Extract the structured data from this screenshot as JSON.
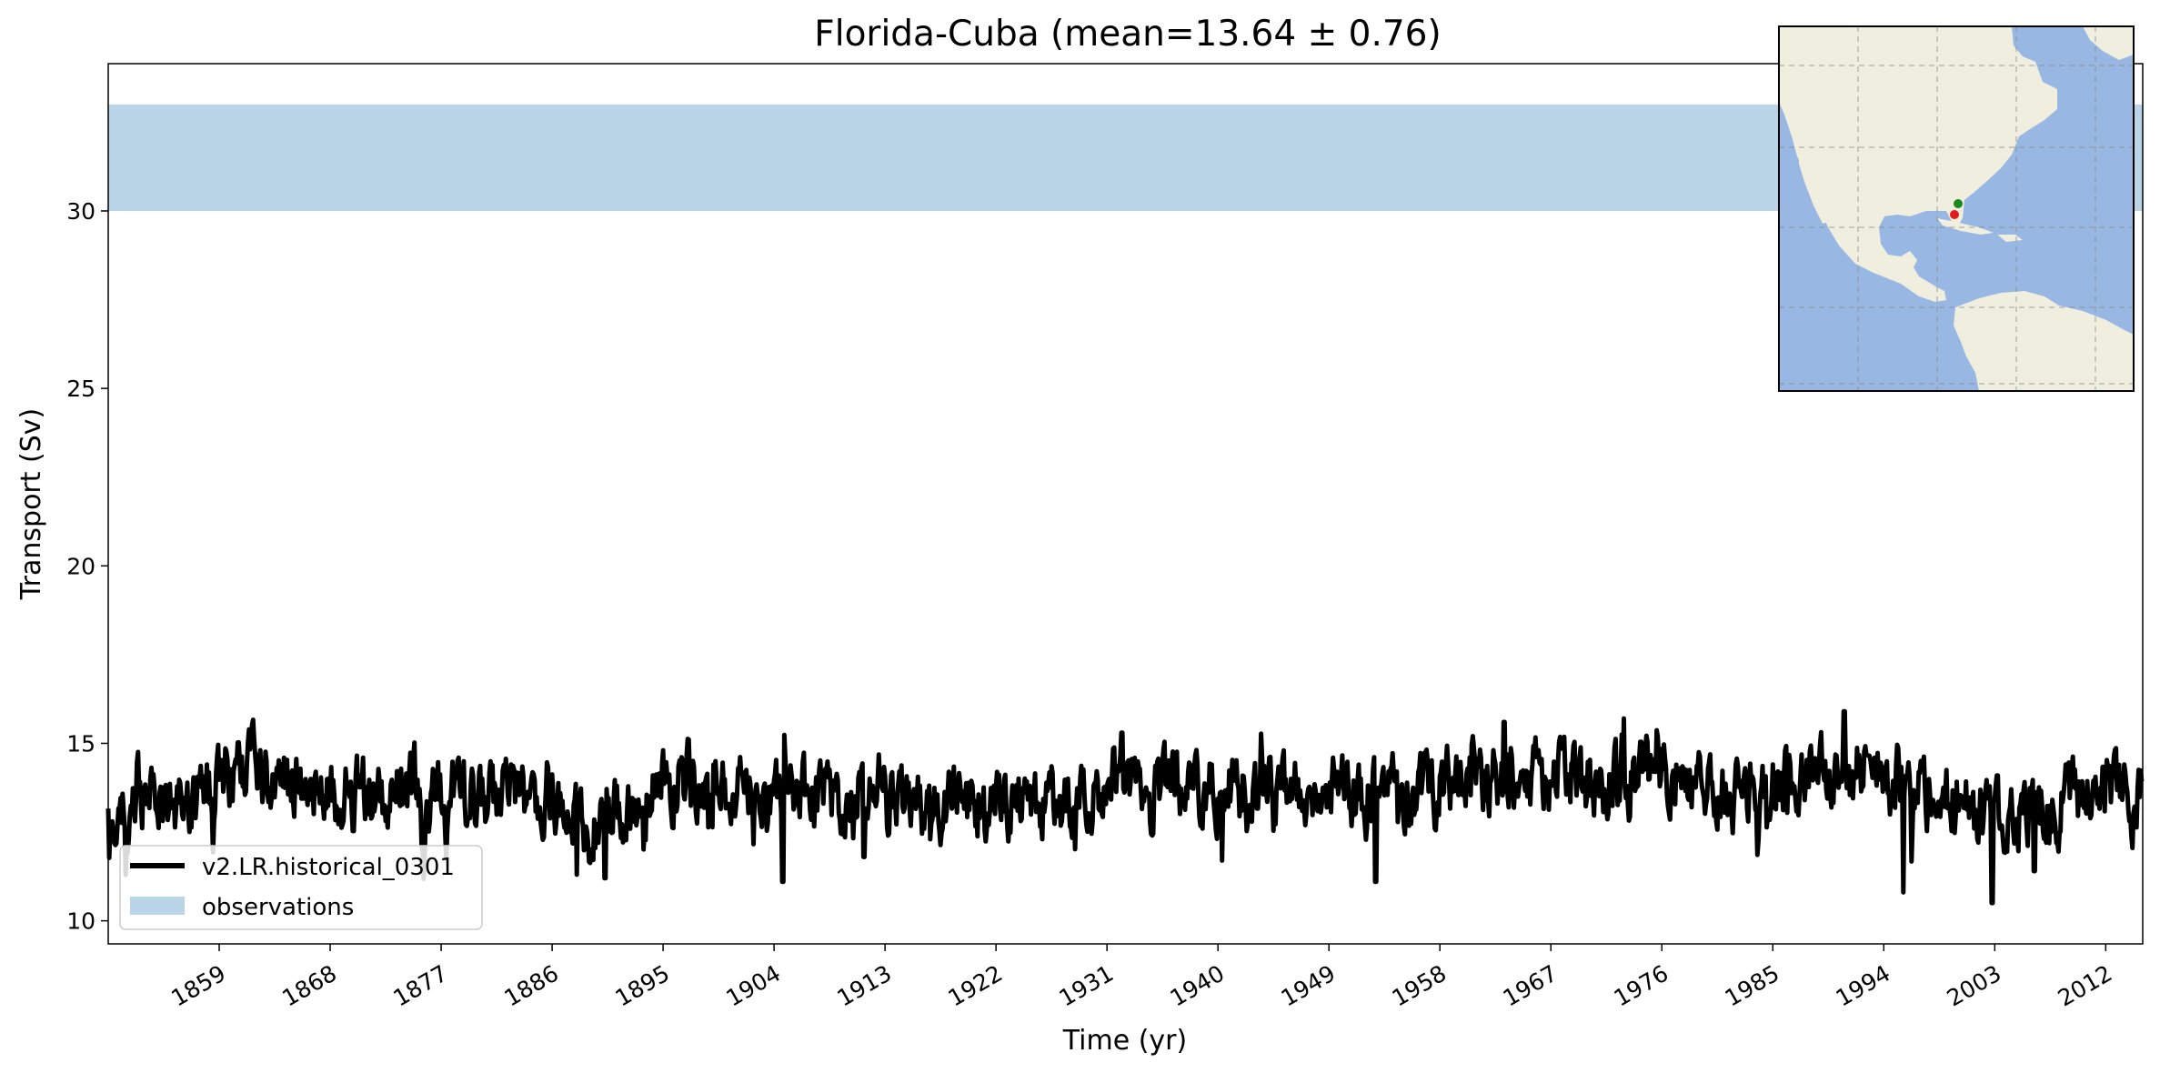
{
  "chart_data": {
    "type": "line",
    "title": "Florida-Cuba (mean=13.64 ± 0.76)",
    "xlabel": "Time (yr)",
    "ylabel": "Transport (Sv)",
    "xlim": [
      1850,
      2015
    ],
    "ylim": [
      9.35,
      34.15
    ],
    "x_ticks": [
      "1859",
      "1868",
      "1877",
      "1886",
      "1895",
      "1904",
      "1913",
      "1922",
      "1931",
      "1940",
      "1949",
      "1958",
      "1967",
      "1976",
      "1985",
      "1994",
      "2003",
      "2012"
    ],
    "y_ticks": [
      "10",
      "15",
      "20",
      "25",
      "30"
    ],
    "grid": false,
    "legend_location": "lower-left",
    "series": [
      {
        "name": "v2.LR.historical_0301",
        "color": "#000000",
        "sampling": "monthly, 1850-2014 (dense noisy series; only its envelope is legible)",
        "anchor_x": [
          1850,
          1853,
          1856,
          1859,
          1862,
          1865,
          1868,
          1871,
          1874,
          1877,
          1880,
          1883,
          1886,
          1889,
          1892,
          1895,
          1898,
          1901,
          1904,
          1907,
          1910,
          1913,
          1916,
          1919,
          1922,
          1925,
          1928,
          1931,
          1934,
          1937,
          1940,
          1943,
          1946,
          1949,
          1952,
          1955,
          1958,
          1961,
          1964,
          1967,
          1970,
          1973,
          1976,
          1979,
          1982,
          1985,
          1988,
          1991,
          1994,
          1997,
          2000,
          2003,
          2006,
          2009,
          2012,
          2014
        ],
        "anchor_mean": [
          13.3,
          13.4,
          13.3,
          14.0,
          14.3,
          13.7,
          13.5,
          13.6,
          13.8,
          13.8,
          13.4,
          13.6,
          13.7,
          12.7,
          13.1,
          13.9,
          14.0,
          13.7,
          13.4,
          13.6,
          13.5,
          13.8,
          13.4,
          13.3,
          13.4,
          13.4,
          13.3,
          14.0,
          13.9,
          13.6,
          13.7,
          13.8,
          13.9,
          13.8,
          13.5,
          13.6,
          13.7,
          14.0,
          13.8,
          14.1,
          14.0,
          13.9,
          14.3,
          13.8,
          13.6,
          13.9,
          14.2,
          14.1,
          14.4,
          13.5,
          13.4,
          12.8,
          13.1,
          13.4,
          13.8,
          13.4
        ],
        "anomaly_points": [
          [
            1888.0,
            11.3
          ],
          [
            1890.3,
            11.2
          ],
          [
            1904.7,
            11.1
          ],
          [
            1911.3,
            11.8
          ],
          [
            1932.2,
            15.3
          ],
          [
            1952.8,
            11.1
          ],
          [
            1963.2,
            15.6
          ],
          [
            1972.9,
            15.7
          ],
          [
            1990.8,
            15.9
          ],
          [
            1995.6,
            10.8
          ],
          [
            2002.8,
            10.5
          ],
          [
            2006.2,
            11.4
          ]
        ],
        "min": 10.5,
        "max": 15.9
      },
      {
        "name": "observations",
        "type": "band",
        "y_range": [
          30.0,
          33.0
        ],
        "color": "#aacbe2"
      }
    ],
    "inset_map": {
      "location": "top-right",
      "region": "North Atlantic / Americas",
      "markers": [
        {
          "color": "#1a8a1a",
          "role": "Florida end (green dot)"
        },
        {
          "color": "#e31a1c",
          "role": "Cuba end (red dot)"
        }
      ]
    }
  }
}
